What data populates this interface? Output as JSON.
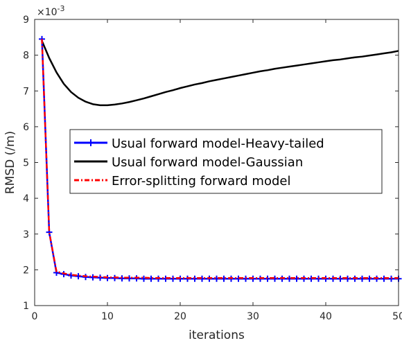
{
  "chart_data": {
    "type": "line",
    "title": "",
    "xlabel": "iterations",
    "ylabel": "RMSD (/m)",
    "y_exponent_label": "×10",
    "y_exponent_value": "-3",
    "xlim": [
      0,
      50
    ],
    "ylim": [
      1,
      9
    ],
    "x_ticks": [
      0,
      10,
      20,
      30,
      40,
      50
    ],
    "x_tick_labels": [
      "0",
      "10",
      "20",
      "30",
      "40",
      "50"
    ],
    "y_ticks": [
      1,
      2,
      3,
      4,
      5,
      6,
      7,
      8,
      9
    ],
    "y_tick_labels": [
      "1",
      "2",
      "3",
      "4",
      "5",
      "6",
      "7",
      "8",
      "9"
    ],
    "grid": false,
    "legend_position": "center",
    "series": [
      {
        "name": "Usual forward model-Heavy-tailed",
        "color": "#0000ff",
        "line_style": "solid",
        "marker": "plus",
        "x": [
          1,
          2,
          3,
          4,
          5,
          6,
          7,
          8,
          9,
          10,
          11,
          12,
          13,
          14,
          15,
          16,
          17,
          18,
          19,
          20,
          21,
          22,
          23,
          24,
          25,
          26,
          27,
          28,
          29,
          30,
          31,
          32,
          33,
          34,
          35,
          36,
          37,
          38,
          39,
          40,
          41,
          42,
          43,
          44,
          45,
          46,
          47,
          48,
          49,
          50
        ],
        "values": [
          8.45,
          3.05,
          1.92,
          1.88,
          1.84,
          1.82,
          1.8,
          1.79,
          1.78,
          1.77,
          1.77,
          1.76,
          1.76,
          1.76,
          1.75,
          1.75,
          1.75,
          1.75,
          1.75,
          1.75,
          1.75,
          1.75,
          1.75,
          1.75,
          1.75,
          1.75,
          1.75,
          1.75,
          1.75,
          1.75,
          1.75,
          1.75,
          1.75,
          1.75,
          1.75,
          1.75,
          1.75,
          1.75,
          1.75,
          1.75,
          1.75,
          1.75,
          1.75,
          1.75,
          1.75,
          1.75,
          1.75,
          1.75,
          1.75,
          1.75
        ]
      },
      {
        "name": "Usual forward model-Gaussian",
        "color": "#000000",
        "line_style": "solid",
        "marker": "none",
        "x": [
          1,
          2,
          3,
          4,
          5,
          6,
          7,
          8,
          9,
          10,
          11,
          12,
          13,
          14,
          15,
          16,
          17,
          18,
          19,
          20,
          21,
          22,
          23,
          24,
          25,
          26,
          27,
          28,
          29,
          30,
          31,
          32,
          33,
          34,
          35,
          36,
          37,
          38,
          39,
          40,
          41,
          42,
          43,
          44,
          45,
          46,
          47,
          48,
          49,
          50
        ],
        "values": [
          8.4,
          7.92,
          7.52,
          7.2,
          6.97,
          6.81,
          6.7,
          6.63,
          6.6,
          6.6,
          6.62,
          6.65,
          6.69,
          6.74,
          6.79,
          6.85,
          6.91,
          6.97,
          7.02,
          7.08,
          7.13,
          7.18,
          7.22,
          7.27,
          7.31,
          7.35,
          7.39,
          7.43,
          7.47,
          7.51,
          7.55,
          7.58,
          7.62,
          7.65,
          7.68,
          7.71,
          7.74,
          7.77,
          7.8,
          7.83,
          7.86,
          7.88,
          7.91,
          7.94,
          7.96,
          7.99,
          8.02,
          8.05,
          8.08,
          8.12
        ]
      },
      {
        "name": "Error-splitting forward model",
        "color": "#ff0000",
        "line_style": "dash-dot",
        "marker": "none",
        "x": [
          1,
          2,
          3,
          4,
          5,
          6,
          7,
          8,
          9,
          10,
          11,
          12,
          13,
          14,
          15,
          16,
          17,
          18,
          19,
          20,
          21,
          22,
          23,
          24,
          25,
          26,
          27,
          28,
          29,
          30,
          31,
          32,
          33,
          34,
          35,
          36,
          37,
          38,
          39,
          40,
          41,
          42,
          43,
          44,
          45,
          46,
          47,
          48,
          49,
          50
        ],
        "values": [
          8.45,
          3.05,
          1.95,
          1.9,
          1.86,
          1.84,
          1.82,
          1.81,
          1.8,
          1.79,
          1.79,
          1.78,
          1.78,
          1.78,
          1.78,
          1.77,
          1.77,
          1.77,
          1.77,
          1.77,
          1.77,
          1.77,
          1.77,
          1.77,
          1.77,
          1.77,
          1.77,
          1.77,
          1.77,
          1.77,
          1.77,
          1.77,
          1.77,
          1.77,
          1.77,
          1.77,
          1.77,
          1.77,
          1.77,
          1.77,
          1.77,
          1.77,
          1.77,
          1.77,
          1.77,
          1.77,
          1.77,
          1.77,
          1.77,
          1.77
        ]
      }
    ]
  }
}
